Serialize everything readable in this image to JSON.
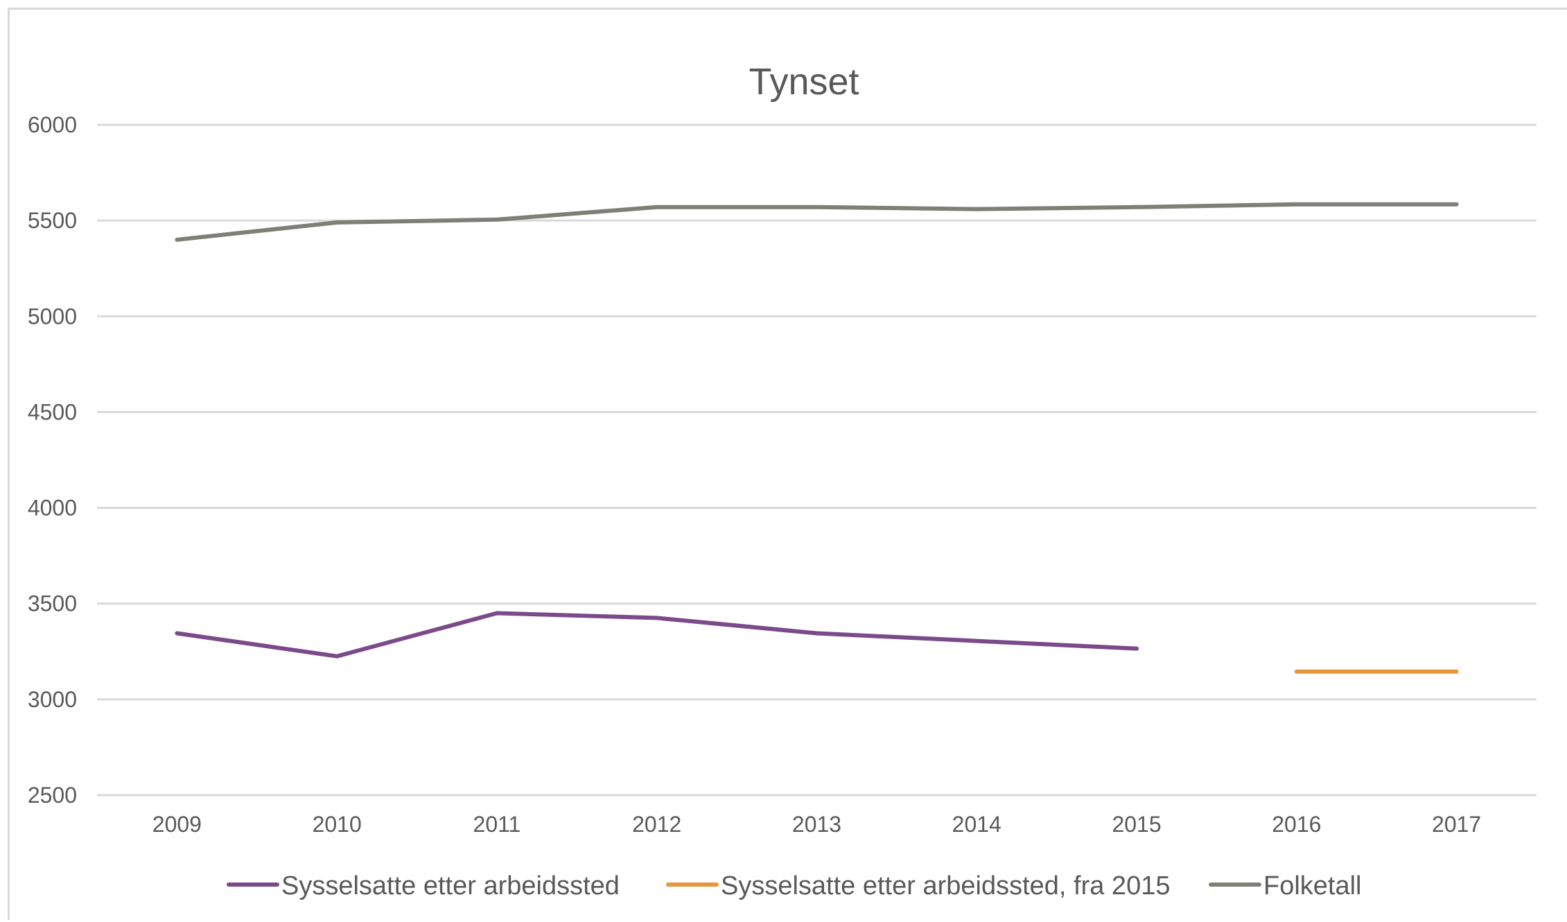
{
  "chart_data": {
    "type": "line",
    "title": "Tynset",
    "xlabel": "",
    "ylabel": "",
    "categories": [
      "2009",
      "2010",
      "2011",
      "2012",
      "2013",
      "2014",
      "2015",
      "2016",
      "2017"
    ],
    "ylim": [
      2500,
      6000
    ],
    "yticks": [
      "2500",
      "3000",
      "3500",
      "4000",
      "4500",
      "5000",
      "5500",
      "6000"
    ],
    "grid": true,
    "legend_position": "bottom",
    "series": [
      {
        "name": "Sysselsatte etter arbeidssted",
        "color": "#7b4a8a",
        "values": [
          3345,
          3225,
          3450,
          3425,
          3345,
          3305,
          3265,
          null,
          null
        ]
      },
      {
        "name": "Sysselsatte etter arbeidssted, fra 2015",
        "color": "#e8963a",
        "values": [
          null,
          null,
          null,
          null,
          null,
          null,
          null,
          3145,
          3145
        ]
      },
      {
        "name": "Folketall",
        "color": "#7f7f76",
        "values": [
          5400,
          5490,
          5505,
          5570,
          5570,
          5560,
          5570,
          5585,
          5585
        ]
      }
    ]
  }
}
